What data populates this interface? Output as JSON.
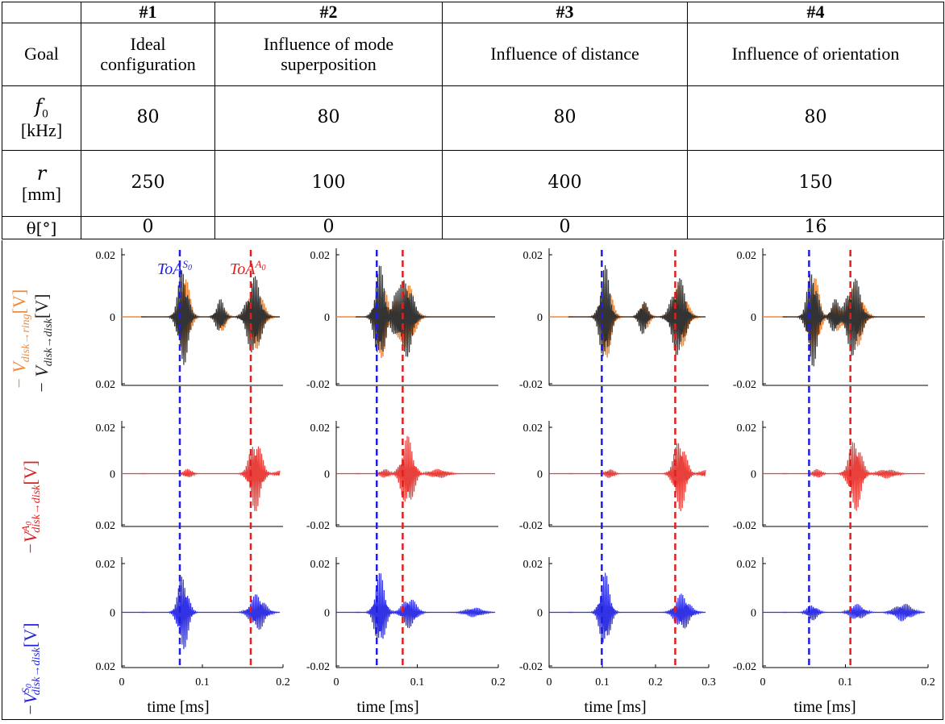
{
  "table": {
    "columns": [
      "#1",
      "#2",
      "#3",
      "#4"
    ],
    "goal_label": "Goal",
    "goals": [
      "Ideal configuration",
      "Influence of mode superposition",
      "Influence of distance",
      "Influence of orientation"
    ],
    "f0_label": "f",
    "f0_sub": "0",
    "f0_unit": "[kHz]",
    "f0": [
      "80",
      "80",
      "80",
      "80"
    ],
    "r_label": "r",
    "r_unit": "[mm]",
    "r": [
      "250",
      "100",
      "400",
      "150"
    ],
    "theta_label": "θ[°]",
    "theta": [
      "0",
      "0",
      "0",
      "16"
    ]
  },
  "labels": {
    "toa_s0": "ToA",
    "toa_s0_sup": "S",
    "toa_s0_sub": "0",
    "toa_a0": "ToA",
    "toa_a0_sup": "A",
    "toa_a0_sub": "0",
    "ylabel_row1_ring": "− V",
    "ylabel_row1_ring_sub": "disk→ring",
    "ylabel_row1_disk": "− V",
    "ylabel_row1_disk_sub": "disk→disk",
    "unit_v": "[V]",
    "ylabel_row2": "−V",
    "ylabel_row2_sup": "A",
    "ylabel_row2_sup_sub": "0",
    "ylabel_row2_sub": "disk→disk",
    "ylabel_row3": "−V",
    "ylabel_row3_sup": "S",
    "ylabel_row3_sup_sub": "0",
    "ylabel_row3_sub": "disk→disk",
    "xlabel": "time [ms]"
  },
  "colors": {
    "s0": "#1f1fe0",
    "a0": "#e01f1f",
    "ring": "#f08a3c",
    "disk": "#333333",
    "a0_signal": "#e8413c",
    "s0_signal": "#3333e6"
  },
  "chart_data": [
    {
      "type": "line",
      "panel": "row1-col1",
      "xlim": [
        0,
        0.2
      ],
      "yticks": [
        "0.02",
        "0",
        "0.02"
      ],
      "xticks": [],
      "toa_s0": 0.072,
      "toa_a0": 0.16,
      "series": [
        {
          "name": "−V disk→ring",
          "color": "ring"
        },
        {
          "name": "−V disk→disk",
          "color": "disk"
        }
      ]
    },
    {
      "type": "line",
      "panel": "row1-col2",
      "xlim": [
        0,
        0.2
      ],
      "yticks": [
        "0.02",
        "0",
        "-0.02"
      ],
      "xticks": [],
      "toa_s0": 0.05,
      "toa_a0": 0.081
    },
    {
      "type": "line",
      "panel": "row1-col3",
      "xlim": [
        0,
        0.3
      ],
      "yticks": [
        "0.02",
        "0",
        "-0.02"
      ],
      "xticks": [],
      "toa_s0": 0.098,
      "toa_a0": 0.238
    },
    {
      "type": "line",
      "panel": "row1-col4",
      "xlim": [
        0,
        0.2
      ],
      "yticks": [
        "0.02",
        "0",
        "-0.02"
      ],
      "xticks": [],
      "toa_s0": 0.056,
      "toa_a0": 0.106
    },
    {
      "type": "line",
      "panel": "row2-col1",
      "xlim": [
        0,
        0.2
      ],
      "yticks": [
        "0.02",
        "0",
        "0.02"
      ],
      "xticks": []
    },
    {
      "type": "line",
      "panel": "row2-col2",
      "xlim": [
        0,
        0.2
      ],
      "yticks": [
        "0.02",
        "0",
        "-0.02"
      ],
      "xticks": []
    },
    {
      "type": "line",
      "panel": "row2-col3",
      "xlim": [
        0,
        0.3
      ],
      "yticks": [
        "0.02",
        "0",
        "-0.02"
      ],
      "xticks": []
    },
    {
      "type": "line",
      "panel": "row2-col4",
      "xlim": [
        0,
        0.2
      ],
      "yticks": [
        "0.02",
        "0",
        "-0.02"
      ],
      "xticks": []
    },
    {
      "type": "line",
      "panel": "row3-col1",
      "xlim": [
        0,
        0.2
      ],
      "yticks": [
        "0.02",
        "0",
        "0.02"
      ],
      "xticks": [
        "0",
        "0.1",
        "0.2"
      ]
    },
    {
      "type": "line",
      "panel": "row3-col2",
      "xlim": [
        0,
        0.2
      ],
      "yticks": [
        "0.02",
        "0",
        "-0.02"
      ],
      "xticks": [
        "0",
        "0.1",
        "0.2"
      ]
    },
    {
      "type": "line",
      "panel": "row3-col3",
      "xlim": [
        0,
        0.3
      ],
      "yticks": [
        "0.02",
        "0",
        "-0.02"
      ],
      "xticks": [
        "0",
        "0.1",
        "0.2",
        "0.3"
      ]
    },
    {
      "type": "line",
      "panel": "row3-col4",
      "xlim": [
        0,
        0.2
      ],
      "yticks": [
        "0.02",
        "0",
        "-0.02"
      ],
      "xticks": [
        "0",
        "0.1",
        "0.2"
      ]
    }
  ]
}
